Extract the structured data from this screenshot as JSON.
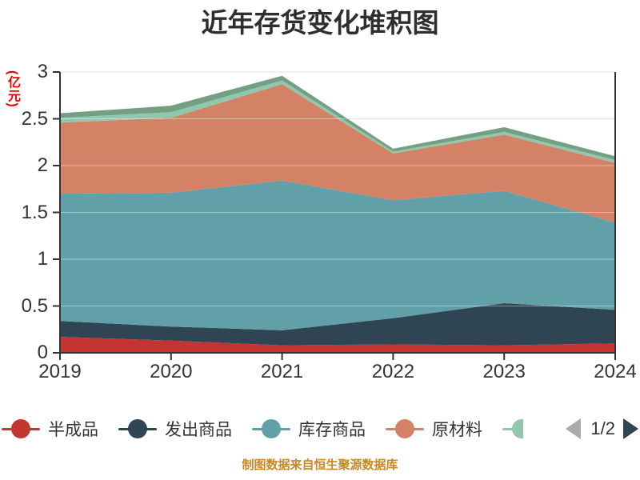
{
  "title": "近年存货变化堆积图",
  "y_axis": {
    "unit_label": "(亿元)",
    "unit_color": "#e60000",
    "tick_labels": [
      "0",
      "0.5",
      "1",
      "1.5",
      "2",
      "2.5",
      "3"
    ],
    "label_color": "#333333"
  },
  "x_axis": {
    "tick_labels": [
      "2019",
      "2020",
      "2021",
      "2022",
      "2023",
      "2024"
    ],
    "label_color": "#333333"
  },
  "legend": {
    "items": [
      {
        "label": "半成品",
        "color": "#c23531",
        "partial": false
      },
      {
        "label": "发出商品",
        "color": "#2f4554",
        "partial": false
      },
      {
        "label": "库存商品",
        "color": "#61a0a8",
        "partial": false
      },
      {
        "label": "原材料",
        "color": "#d48265",
        "partial": false
      },
      {
        "label": "",
        "color": "#91c7ae",
        "partial": true
      }
    ],
    "pager": {
      "label": "1/2",
      "prev_arrow_color": "#aaaaaa",
      "next_arrow_color": "#2f4554"
    }
  },
  "footer": {
    "credit": "制图数据来自恒生聚源数据库",
    "color": "#ca8622"
  },
  "chart_data": {
    "type": "area",
    "stacked": true,
    "title": "近年存货变化堆积图",
    "x": [
      "2019",
      "2020",
      "2021",
      "2022",
      "2023",
      "2024"
    ],
    "ylabel": "(亿元)",
    "ylim": [
      0,
      3
    ],
    "y_tick_step": 0.5,
    "grid": true,
    "legend_position": "bottom",
    "series": [
      {
        "name": "半成品",
        "color": "#c23531",
        "values": [
          0.17,
          0.13,
          0.08,
          0.09,
          0.08,
          0.1
        ]
      },
      {
        "name": "发出商品",
        "color": "#2f4554",
        "values": [
          0.17,
          0.15,
          0.16,
          0.28,
          0.45,
          0.36
        ]
      },
      {
        "name": "库存商品",
        "color": "#61a0a8",
        "values": [
          1.36,
          1.43,
          1.6,
          1.26,
          1.2,
          0.93
        ]
      },
      {
        "name": "原材料",
        "color": "#d48265",
        "values": [
          0.76,
          0.8,
          1.03,
          0.5,
          0.6,
          0.64
        ]
      },
      {
        "name": "",
        "color": "#91c7ae",
        "values": [
          0.05,
          0.06,
          0.04,
          0.02,
          0.03,
          0.03
        ]
      },
      {
        "name": "",
        "color": "#749f83",
        "values": [
          0.05,
          0.07,
          0.05,
          0.03,
          0.05,
          0.04
        ]
      }
    ]
  }
}
